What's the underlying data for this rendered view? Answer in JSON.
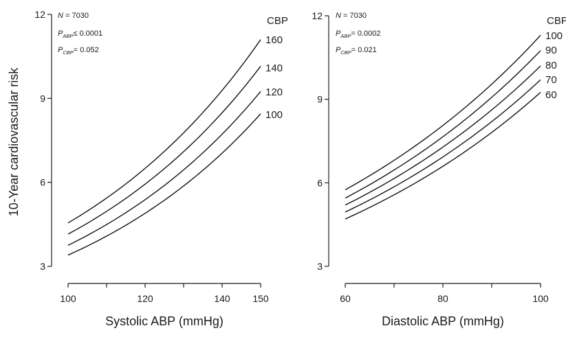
{
  "figure": {
    "ylabel": "10-Year cardiovascular risk"
  },
  "chart_data": [
    {
      "type": "line",
      "xlabel": "Systolic ABP (mmHg)",
      "xlim": [
        100,
        150
      ],
      "ylim": [
        3,
        12
      ],
      "xticks": [
        100,
        110,
        120,
        130,
        140,
        150
      ],
      "xtick_labels": [
        "100",
        "",
        "120",
        "",
        "140",
        "150"
      ],
      "yticks": [
        3,
        6,
        9,
        12
      ],
      "ytick_labels": [
        "3",
        "6",
        "9",
        "12"
      ],
      "annotation": {
        "n_label": "N",
        "n_text": " = 7030",
        "p1_label": "P",
        "p1_sub": "ABP",
        "p1_text": "≤ 0.0001",
        "p2_label": "P",
        "p2_sub": "CBP",
        "p2_text": "= 0.052"
      },
      "legend_title": "CBP",
      "series": [
        {
          "name": "160",
          "x": [
            100,
            150
          ],
          "y": [
            4.55,
            11.1
          ]
        },
        {
          "name": "140",
          "x": [
            100,
            150
          ],
          "y": [
            4.15,
            10.15
          ]
        },
        {
          "name": "120",
          "x": [
            100,
            150
          ],
          "y": [
            3.75,
            9.25
          ]
        },
        {
          "name": "100",
          "x": [
            100,
            150
          ],
          "y": [
            3.4,
            8.45
          ]
        }
      ]
    },
    {
      "type": "line",
      "xlabel": "Diastolic ABP (mmHg)",
      "xlim": [
        60,
        100
      ],
      "ylim": [
        3,
        12
      ],
      "xticks": [
        60,
        70,
        80,
        90,
        100
      ],
      "xtick_labels": [
        "60",
        "",
        "80",
        "",
        "100"
      ],
      "yticks": [
        3,
        6,
        9,
        12
      ],
      "ytick_labels": [
        "3",
        "6",
        "9",
        "12"
      ],
      "annotation": {
        "n_label": "N",
        "n_text": " = 7030",
        "p1_label": "P",
        "p1_sub": "ABP",
        "p1_text": "= 0.0002",
        "p2_label": "P",
        "p2_sub": "CBP",
        "p2_text": "= 0.021"
      },
      "legend_title": "CBP",
      "series": [
        {
          "name": "100",
          "x": [
            60,
            100
          ],
          "y": [
            5.75,
            11.3
          ]
        },
        {
          "name": "90",
          "x": [
            60,
            100
          ],
          "y": [
            5.45,
            10.75
          ]
        },
        {
          "name": "80",
          "x": [
            60,
            100
          ],
          "y": [
            5.2,
            10.2
          ]
        },
        {
          "name": "70",
          "x": [
            60,
            100
          ],
          "y": [
            4.95,
            9.7
          ]
        },
        {
          "name": "60",
          "x": [
            60,
            100
          ],
          "y": [
            4.7,
            9.25
          ]
        }
      ]
    }
  ]
}
